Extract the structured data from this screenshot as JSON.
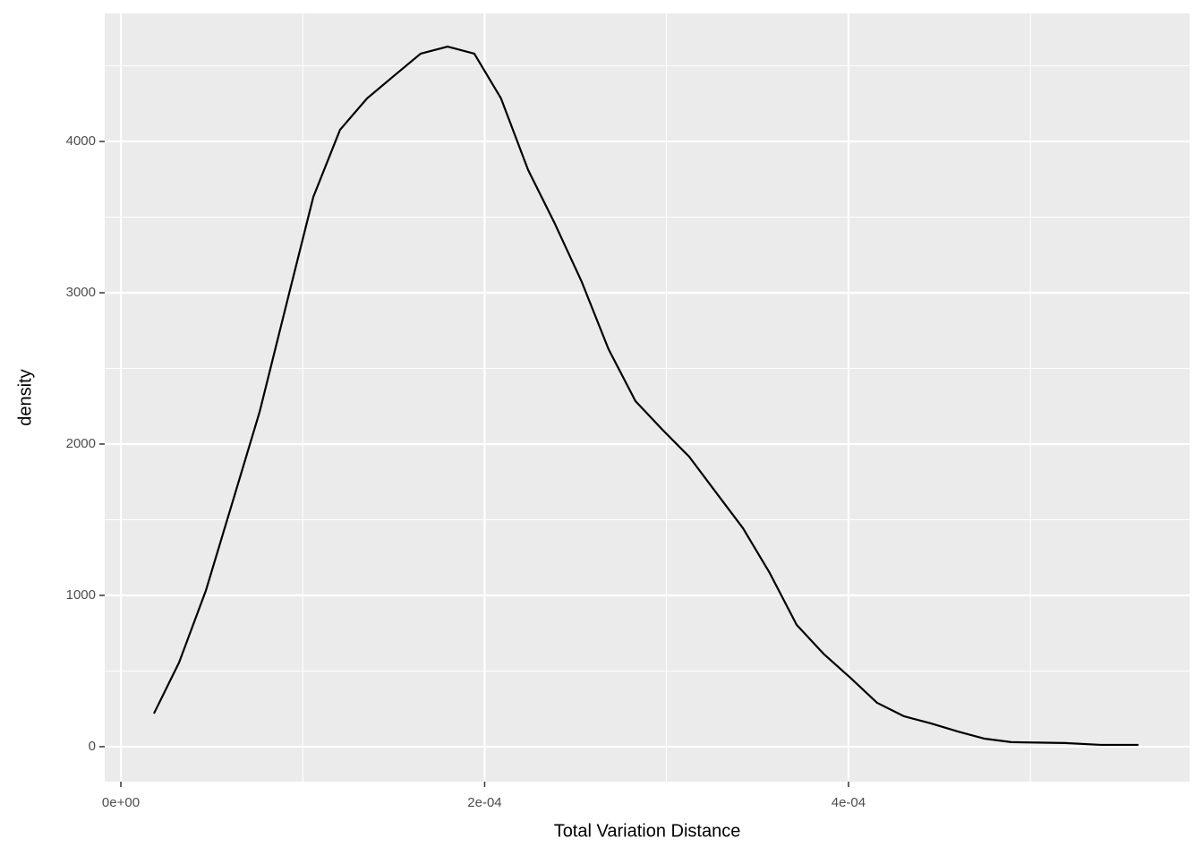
{
  "chart_data": {
    "type": "line",
    "xlabel": "Total Variation Distance",
    "ylabel": "density",
    "x": [
      1.82e-05,
      3.2e-05,
      4.67e-05,
      6.15e-05,
      7.63e-05,
      9.1e-05,
      0.0001058,
      0.0001205,
      0.0001353,
      0.00015,
      0.0001648,
      0.0001796,
      0.0001943,
      0.000209,
      0.0002239,
      0.0002386,
      0.0002534,
      0.0002681,
      0.0002829,
      0.0002977,
      0.0003124,
      0.0003272,
      0.000342,
      0.0003567,
      0.0003715,
      0.0003862,
      0.000401,
      0.0004157,
      0.0004305,
      0.0004453,
      0.00046,
      0.0004748,
      0.0004895,
      0.000519,
      0.0005387,
      0.0005594
    ],
    "series": [
      {
        "color": "#000000",
        "values": [
          219,
          556,
          1030,
          1621,
          2213,
          2923,
          3633,
          4077,
          4284,
          4432,
          4580,
          4627,
          4580,
          4284,
          3811,
          3456,
          3071,
          2627,
          2284,
          2095,
          1917,
          1680,
          1444,
          1148,
          805,
          615,
          456,
          290,
          201,
          154,
          101,
          53,
          30,
          24,
          12,
          12
        ]
      }
    ],
    "xlim": [
      -8.86e-06,
      0.0005875
    ],
    "ylim": [
      -231,
      4846
    ],
    "xticks": [
      {
        "value": 0,
        "label": "0e+00"
      },
      {
        "value": 0.0002,
        "label": "2e-04"
      },
      {
        "value": 0.0004,
        "label": "4e-04"
      }
    ],
    "yticks": [
      0,
      1000,
      2000,
      3000,
      4000
    ],
    "x_minor_grid": [
      0.0001,
      0.0003,
      0.0005
    ],
    "y_minor_grid": [
      500,
      1500,
      2500,
      3500,
      4500
    ],
    "grid": true,
    "panel_color": "#ebebeb"
  }
}
